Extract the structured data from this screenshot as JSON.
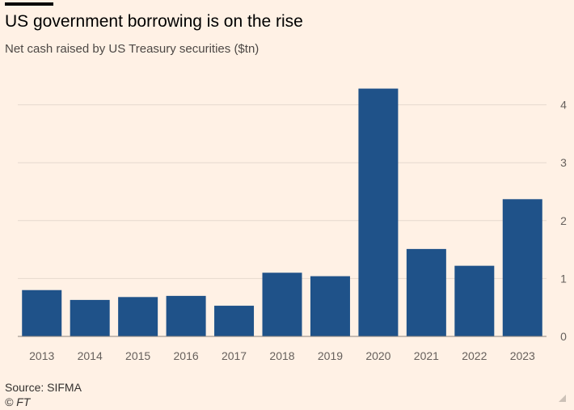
{
  "header": {
    "title": "US government borrowing is on the rise",
    "subtitle": "Net cash raised by US Treasury securities ($tn)"
  },
  "footer": {
    "source": "Source: SIFMA",
    "credit": "© FT"
  },
  "colors": {
    "bar": "#1f5289",
    "background": "#fff1e5",
    "grid": "#e6d9ce",
    "text": "#33302e"
  },
  "chart_data": {
    "type": "bar",
    "categories": [
      "2013",
      "2014",
      "2015",
      "2016",
      "2017",
      "2018",
      "2019",
      "2020",
      "2021",
      "2022",
      "2023"
    ],
    "values": [
      0.8,
      0.63,
      0.68,
      0.7,
      0.53,
      1.1,
      1.04,
      4.28,
      1.51,
      1.22,
      2.37
    ],
    "title": "US government borrowing is on the rise",
    "subtitle": "Net cash raised by US Treasury securities ($tn)",
    "xlabel": "",
    "ylabel": "",
    "ylim": [
      0,
      4
    ],
    "yticks": [
      0,
      1,
      2,
      3,
      4
    ],
    "grid": true,
    "y_axis_side": "right",
    "legend": "none"
  }
}
